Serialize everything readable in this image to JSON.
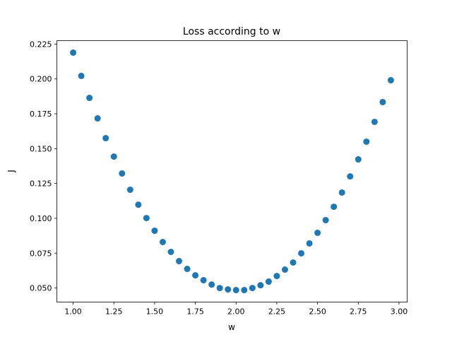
{
  "chart_data": {
    "type": "scatter",
    "title": "Loss according to w",
    "xlabel": "w",
    "ylabel": "J",
    "xlim": [
      0.9,
      3.05
    ],
    "ylim": [
      0.0399,
      0.2275
    ],
    "xticks": [
      1.0,
      1.25,
      1.5,
      1.75,
      2.0,
      2.25,
      2.5,
      2.75,
      3.0
    ],
    "xtick_labels": [
      "1.00",
      "1.25",
      "1.50",
      "1.75",
      "2.00",
      "2.25",
      "2.50",
      "2.75",
      "3.00"
    ],
    "yticks": [
      0.05,
      0.075,
      0.1,
      0.125,
      0.15,
      0.175,
      0.2,
      0.225
    ],
    "ytick_labels": [
      "0.050",
      "0.075",
      "0.100",
      "0.125",
      "0.150",
      "0.175",
      "0.200",
      "0.225"
    ],
    "grid": false,
    "color": "#1f77b4",
    "x": [
      1.0,
      1.05,
      1.1,
      1.15,
      1.2,
      1.25,
      1.3,
      1.35,
      1.4,
      1.45,
      1.5,
      1.55,
      1.6,
      1.65,
      1.7,
      1.75,
      1.8,
      1.85,
      1.9,
      1.95,
      2.0,
      2.05,
      2.1,
      2.15,
      2.2,
      2.25,
      2.3,
      2.35,
      2.4,
      2.45,
      2.5,
      2.55,
      2.6,
      2.65,
      2.7,
      2.75,
      2.8,
      2.85,
      2.9,
      2.95
    ],
    "y": [
      0.2189,
      0.2022,
      0.1864,
      0.1717,
      0.1575,
      0.1443,
      0.1322,
      0.1205,
      0.1098,
      0.1002,
      0.0911,
      0.083,
      0.0759,
      0.0693,
      0.0637,
      0.0591,
      0.0556,
      0.0525,
      0.05,
      0.049,
      0.0485,
      0.0485,
      0.05,
      0.052,
      0.0546,
      0.0586,
      0.0632,
      0.0683,
      0.0749,
      0.082,
      0.0896,
      0.0987,
      0.1083,
      0.1185,
      0.1301,
      0.1423,
      0.155,
      0.1692,
      0.1834,
      0.1991
    ]
  }
}
